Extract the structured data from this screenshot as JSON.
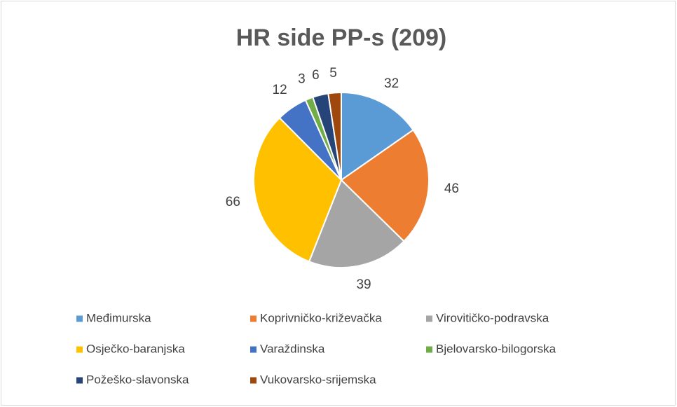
{
  "chart_data": {
    "type": "pie",
    "title": "HR side PP-s (209)",
    "categories": [
      "Međimurska",
      "Koprivničko-križevačka",
      "Virovitičko-podravska",
      "Osječko-baranjska",
      "Varaždinska",
      "Bjelovarsko-bilogorska",
      "Požeško-slavonska",
      "Vukovarsko-srijemska"
    ],
    "values": [
      32,
      46,
      39,
      66,
      12,
      3,
      6,
      5
    ],
    "colors": [
      "#5b9bd5",
      "#ed7d31",
      "#a5a5a5",
      "#ffc000",
      "#4472c4",
      "#70ad47",
      "#264478",
      "#9e480e"
    ],
    "legend": "bottom"
  }
}
